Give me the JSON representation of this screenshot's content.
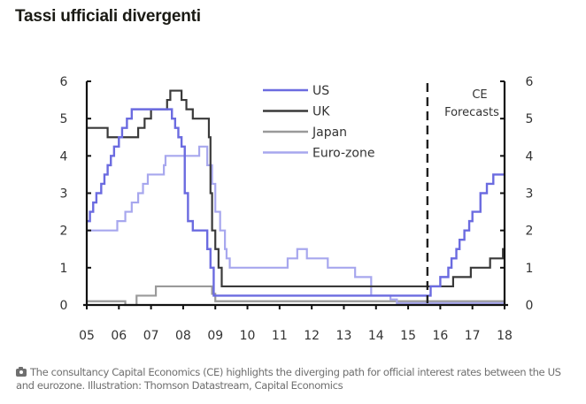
{
  "page": {
    "title": "Tassi ufficiali divergenti",
    "caption_icon": "camera-icon",
    "caption": "The consultancy Capital Economics (CE) highlights the diverging path for official interest rates between the US and eurozone. Illustration: Thomson Datastream, Capital Economics"
  },
  "chart_data": {
    "type": "line",
    "step": true,
    "title": "",
    "xlabel": "",
    "ylabel": "",
    "xlim": [
      2005,
      2018
    ],
    "ylim": [
      0,
      6
    ],
    "x_tick_labels": [
      "05",
      "06",
      "07",
      "08",
      "09",
      "10",
      "11",
      "12",
      "13",
      "14",
      "15",
      "16",
      "17",
      "18"
    ],
    "y_tick_labels": [
      "0",
      "1",
      "2",
      "3",
      "4",
      "5",
      "6"
    ],
    "y_axis_sides": [
      "left",
      "right"
    ],
    "grid": false,
    "legend": {
      "position": "top-center",
      "entries": [
        "US",
        "UK",
        "Japan",
        "Euro-zone"
      ]
    },
    "annotation": {
      "text_line1": "CE",
      "text_line2": "Forecasts",
      "forecast_start_x": 2015.6
    },
    "series": [
      {
        "name": "US",
        "color": "#6b6be0",
        "points": [
          [
            2005,
            2.25
          ],
          [
            2005.1,
            2.5
          ],
          [
            2005.2,
            2.75
          ],
          [
            2005.3,
            3.0
          ],
          [
            2005.45,
            3.25
          ],
          [
            2005.55,
            3.5
          ],
          [
            2005.65,
            3.75
          ],
          [
            2005.75,
            4.0
          ],
          [
            2005.85,
            4.25
          ],
          [
            2006.0,
            4.5
          ],
          [
            2006.1,
            4.75
          ],
          [
            2006.25,
            5.0
          ],
          [
            2006.4,
            5.25
          ],
          [
            2007.65,
            5.0
          ],
          [
            2007.75,
            4.75
          ],
          [
            2007.85,
            4.5
          ],
          [
            2007.95,
            4.25
          ],
          [
            2008.05,
            3.0
          ],
          [
            2008.15,
            2.25
          ],
          [
            2008.3,
            2.0
          ],
          [
            2008.75,
            1.5
          ],
          [
            2008.85,
            1.0
          ],
          [
            2008.95,
            0.25
          ],
          [
            2015.7,
            0.5
          ],
          [
            2016.0,
            0.75
          ],
          [
            2016.25,
            1.0
          ],
          [
            2016.35,
            1.25
          ],
          [
            2016.5,
            1.5
          ],
          [
            2016.6,
            1.75
          ],
          [
            2016.75,
            2.0
          ],
          [
            2016.9,
            2.25
          ],
          [
            2017.0,
            2.5
          ],
          [
            2017.25,
            3.0
          ],
          [
            2017.45,
            3.25
          ],
          [
            2017.65,
            3.5
          ],
          [
            2018,
            3.5
          ]
        ]
      },
      {
        "name": "UK",
        "color": "#3a3a3a",
        "points": [
          [
            2005,
            4.75
          ],
          [
            2005.65,
            4.5
          ],
          [
            2006.6,
            4.75
          ],
          [
            2006.8,
            5.0
          ],
          [
            2007.0,
            5.25
          ],
          [
            2007.5,
            5.5
          ],
          [
            2007.6,
            5.75
          ],
          [
            2007.95,
            5.5
          ],
          [
            2008.1,
            5.25
          ],
          [
            2008.3,
            5.0
          ],
          [
            2008.8,
            4.5
          ],
          [
            2008.85,
            3.0
          ],
          [
            2008.9,
            2.0
          ],
          [
            2009.0,
            1.5
          ],
          [
            2009.1,
            1.0
          ],
          [
            2009.2,
            0.5
          ],
          [
            2016.4,
            0.75
          ],
          [
            2016.95,
            1.0
          ],
          [
            2017.55,
            1.25
          ],
          [
            2017.95,
            1.5
          ],
          [
            2018,
            1.5
          ]
        ]
      },
      {
        "name": "Japan",
        "color": "#9a9a9a",
        "points": [
          [
            2005,
            0.1
          ],
          [
            2006.2,
            0.0
          ],
          [
            2006.55,
            0.25
          ],
          [
            2007.15,
            0.5
          ],
          [
            2008.9,
            0.3
          ],
          [
            2009.0,
            0.1
          ],
          [
            2018,
            0.1
          ]
        ]
      },
      {
        "name": "Euro-zone",
        "color": "#a7a7ee",
        "points": [
          [
            2005,
            2.0
          ],
          [
            2005.95,
            2.25
          ],
          [
            2006.2,
            2.5
          ],
          [
            2006.4,
            2.75
          ],
          [
            2006.6,
            3.0
          ],
          [
            2006.75,
            3.25
          ],
          [
            2006.9,
            3.5
          ],
          [
            2007.4,
            3.75
          ],
          [
            2007.45,
            4.0
          ],
          [
            2008.5,
            4.25
          ],
          [
            2008.75,
            3.75
          ],
          [
            2008.9,
            3.25
          ],
          [
            2009.0,
            2.5
          ],
          [
            2009.15,
            2.0
          ],
          [
            2009.3,
            1.5
          ],
          [
            2009.35,
            1.25
          ],
          [
            2009.45,
            1.0
          ],
          [
            2011.25,
            1.25
          ],
          [
            2011.55,
            1.5
          ],
          [
            2011.85,
            1.25
          ],
          [
            2012.5,
            1.0
          ],
          [
            2013.35,
            0.75
          ],
          [
            2013.85,
            0.5
          ],
          [
            2013.85,
            0.25
          ],
          [
            2014.45,
            0.15
          ],
          [
            2014.65,
            0.05
          ],
          [
            2018,
            0.05
          ]
        ]
      }
    ]
  }
}
